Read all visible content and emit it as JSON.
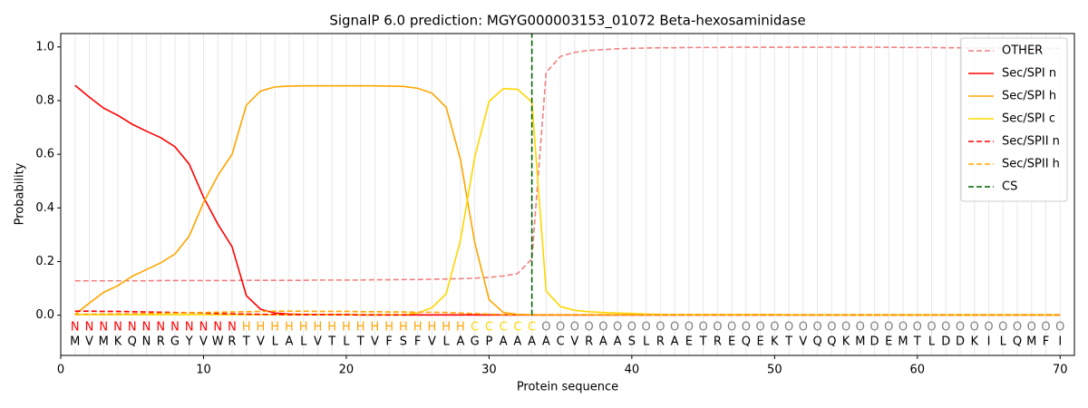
{
  "chart_data": {
    "type": "line",
    "title": "SignalP 6.0 prediction: MGYG000003153_01072 Beta-hexosaminidase",
    "xlabel": "Protein sequence",
    "ylabel": "Probability",
    "xlim": [
      0,
      71
    ],
    "ylim": [
      -0.15,
      1.05
    ],
    "xticks": [
      0,
      10,
      20,
      30,
      40,
      50,
      60,
      70
    ],
    "yticks": [
      {
        "value": 0,
        "label": "0.0"
      },
      {
        "value": 0.2,
        "label": "0.2"
      },
      {
        "value": 0.4,
        "label": "0.4"
      },
      {
        "value": 0.6,
        "label": "0.6"
      },
      {
        "value": 0.8,
        "label": "0.8"
      },
      {
        "value": 1,
        "label": "1.0"
      }
    ],
    "grid": true,
    "legend": "upper right",
    "x": [
      1,
      2,
      3,
      4,
      5,
      6,
      7,
      8,
      9,
      10,
      11,
      12,
      13,
      14,
      15,
      16,
      17,
      18,
      19,
      20,
      21,
      22,
      23,
      24,
      25,
      26,
      27,
      28,
      29,
      30,
      31,
      32,
      33,
      34,
      35,
      36,
      37,
      38,
      39,
      40,
      41,
      42,
      43,
      44,
      45,
      46,
      47,
      48,
      49,
      50,
      51,
      52,
      53,
      54,
      55,
      56,
      57,
      58,
      59,
      60,
      61,
      62,
      63,
      64,
      65,
      66,
      67,
      68,
      69,
      70
    ],
    "residues": [
      "M",
      "V",
      "M",
      "K",
      "Q",
      "N",
      "R",
      "G",
      "Y",
      "V",
      "W",
      "R",
      "T",
      "V",
      "L",
      "A",
      "L",
      "V",
      "T",
      "L",
      "T",
      "V",
      "F",
      "S",
      "F",
      "V",
      "L",
      "A",
      "G",
      "P",
      "A",
      "A",
      "A",
      "A",
      "C",
      "V",
      "R",
      "A",
      "A",
      "S",
      "L",
      "R",
      "A",
      "E",
      "T",
      "R",
      "E",
      "Q",
      "E",
      "K",
      "T",
      "V",
      "Q",
      "Q",
      "K",
      "M",
      "D",
      "E",
      "M",
      "T",
      "L",
      "D",
      "D",
      "K",
      "I",
      "L",
      "Q",
      "M",
      "F",
      "I"
    ],
    "labels": [
      "N",
      "N",
      "N",
      "N",
      "N",
      "N",
      "N",
      "N",
      "N",
      "N",
      "N",
      "N",
      "H",
      "H",
      "H",
      "H",
      "H",
      "H",
      "H",
      "H",
      "H",
      "H",
      "H",
      "H",
      "H",
      "H",
      "H",
      "H",
      "C",
      "C",
      "C",
      "C",
      "C",
      "O",
      "O",
      "O",
      "O",
      "O",
      "O",
      "O",
      "O",
      "O",
      "O",
      "O",
      "O",
      "O",
      "O",
      "O",
      "O",
      "O",
      "O",
      "O",
      "O",
      "O",
      "O",
      "O",
      "O",
      "O",
      "O",
      "O",
      "O",
      "O",
      "O",
      "O",
      "O",
      "O",
      "O",
      "O",
      "O",
      "O"
    ],
    "label_colors": {
      "N": "#ff0000",
      "H": "#ffa500",
      "C": "#ffd700",
      "O": "#808080"
    },
    "series": [
      {
        "name": "OTHER",
        "color": "#f08080",
        "dashed": true,
        "values": [
          0.128,
          0.128,
          0.128,
          0.128,
          0.128,
          0.128,
          0.129,
          0.129,
          0.129,
          0.129,
          0.129,
          0.129,
          0.13,
          0.13,
          0.13,
          0.13,
          0.13,
          0.131,
          0.131,
          0.131,
          0.131,
          0.132,
          0.132,
          0.133,
          0.133,
          0.134,
          0.135,
          0.136,
          0.138,
          0.141,
          0.146,
          0.155,
          0.21,
          0.905,
          0.965,
          0.98,
          0.987,
          0.99,
          0.993,
          0.995,
          0.996,
          0.997,
          0.997,
          0.998,
          0.998,
          0.998,
          0.999,
          0.999,
          0.999,
          0.999,
          0.999,
          0.999,
          0.999,
          0.999,
          0.999,
          0.999,
          0.999,
          0.999,
          0.998,
          0.998,
          0.998,
          0.997,
          0.997,
          0.996,
          0.996,
          0.996,
          0.995,
          0.995,
          0.995,
          0.995
        ]
      },
      {
        "name": "Sec/SPI n",
        "color": "#ff0000",
        "dashed": false,
        "values": [
          0.857,
          0.813,
          0.772,
          0.745,
          0.712,
          0.686,
          0.662,
          0.628,
          0.563,
          0.44,
          0.34,
          0.255,
          0.073,
          0.022,
          0.008,
          0.004,
          0.003,
          0.002,
          0.002,
          0.002,
          0.001,
          0.001,
          0.001,
          0.001,
          0.001,
          0.001,
          0.001,
          0.001,
          0.001,
          0.001,
          0.001,
          0.001,
          0.001,
          0.001,
          0.001,
          0.001,
          0.001,
          0.001,
          0.001,
          0.001,
          0.001,
          0.001,
          0.001,
          0.001,
          0.001,
          0.001,
          0.001,
          0.001,
          0.001,
          0.001,
          0.001,
          0.001,
          0.001,
          0.001,
          0.001,
          0.001,
          0.001,
          0.001,
          0.001,
          0.001,
          0.001,
          0.001,
          0.001,
          0.001,
          0.001,
          0.001,
          0.001,
          0.001,
          0.001,
          0.001
        ]
      },
      {
        "name": "Sec/SPI h",
        "color": "#ffa500",
        "dashed": false,
        "values": [
          0.003,
          0.045,
          0.085,
          0.11,
          0.145,
          0.17,
          0.195,
          0.228,
          0.295,
          0.42,
          0.52,
          0.6,
          0.783,
          0.836,
          0.851,
          0.854,
          0.855,
          0.855,
          0.855,
          0.855,
          0.855,
          0.855,
          0.854,
          0.853,
          0.846,
          0.828,
          0.775,
          0.58,
          0.27,
          0.058,
          0.01,
          0.003,
          0.001,
          0.001,
          0.001,
          0.001,
          0.001,
          0.001,
          0.001,
          0.001,
          0.001,
          0.001,
          0.001,
          0.001,
          0.001,
          0.001,
          0.001,
          0.001,
          0.001,
          0.001,
          0.001,
          0.001,
          0.001,
          0.001,
          0.001,
          0.001,
          0.001,
          0.001,
          0.001,
          0.001,
          0.001,
          0.001,
          0.001,
          0.001,
          0.001,
          0.001,
          0.001,
          0.001,
          0.001,
          0.001
        ]
      },
      {
        "name": "Sec/SPI c",
        "color": "#ffd700",
        "dashed": false,
        "values": [
          0.002,
          0.002,
          0.002,
          0.002,
          0.002,
          0.002,
          0.002,
          0.002,
          0.002,
          0.002,
          0.002,
          0.002,
          0.002,
          0.002,
          0.002,
          0.002,
          0.002,
          0.002,
          0.002,
          0.002,
          0.002,
          0.002,
          0.002,
          0.002,
          0.008,
          0.028,
          0.08,
          0.28,
          0.59,
          0.797,
          0.845,
          0.842,
          0.795,
          0.09,
          0.032,
          0.018,
          0.013,
          0.01,
          0.008,
          0.006,
          0.004,
          0.003,
          0.002,
          0.002,
          0.002,
          0.002,
          0.002,
          0.002,
          0.002,
          0.002,
          0.001,
          0.001,
          0.001,
          0.001,
          0.001,
          0.001,
          0.001,
          0.001,
          0.001,
          0.001,
          0.001,
          0.001,
          0.001,
          0.001,
          0.001,
          0.001,
          0.001,
          0.001,
          0.001,
          0.001
        ]
      },
      {
        "name": "Sec/SPII n",
        "color": "#ff0000",
        "dashed": true,
        "values": [
          0.015,
          0.015,
          0.014,
          0.014,
          0.013,
          0.012,
          0.011,
          0.01,
          0.009,
          0.008,
          0.006,
          0.005,
          0.004,
          0.003,
          0.003,
          0.002,
          0.002,
          0.002,
          0.002,
          0.002,
          0.001,
          0.001,
          0.001,
          0.001,
          0.001,
          0.001,
          0.001,
          0.001,
          0.001,
          0.001,
          0.001,
          0.001,
          0.001,
          0.001,
          0.001,
          0.001,
          0.001,
          0.001,
          0.001,
          0.001,
          0.001,
          0.001,
          0.001,
          0.001,
          0.001,
          0.001,
          0.001,
          0.001,
          0.001,
          0.001,
          0.001,
          0.001,
          0.001,
          0.001,
          0.001,
          0.001,
          0.001,
          0.001,
          0.001,
          0.001,
          0.001,
          0.001,
          0.001,
          0.001,
          0.001,
          0.001,
          0.001,
          0.001,
          0.001,
          0.001
        ]
      },
      {
        "name": "Sec/SPII h",
        "color": "#ffa500",
        "dashed": true,
        "values": [
          0.003,
          0.004,
          0.004,
          0.005,
          0.005,
          0.006,
          0.007,
          0.008,
          0.009,
          0.01,
          0.011,
          0.012,
          0.013,
          0.014,
          0.015,
          0.015,
          0.015,
          0.014,
          0.014,
          0.014,
          0.013,
          0.013,
          0.012,
          0.012,
          0.011,
          0.011,
          0.01,
          0.008,
          0.006,
          0.004,
          0.002,
          0.002,
          0.002,
          0.002,
          0.002,
          0.002,
          0.002,
          0.002,
          0.002,
          0.002,
          0.002,
          0.002,
          0.002,
          0.002,
          0.002,
          0.002,
          0.002,
          0.002,
          0.002,
          0.002,
          0.002,
          0.002,
          0.002,
          0.002,
          0.002,
          0.002,
          0.002,
          0.002,
          0.002,
          0.002,
          0.002,
          0.002,
          0.002,
          0.002,
          0.002,
          0.002,
          0.002,
          0.002,
          0.002,
          0.002
        ]
      }
    ],
    "cs": {
      "name": "CS",
      "x": 33,
      "color": "#006400"
    }
  }
}
